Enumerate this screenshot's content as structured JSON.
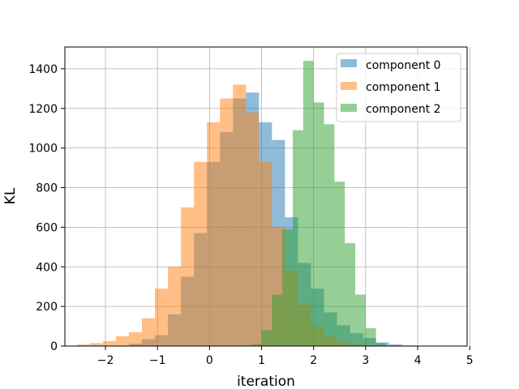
{
  "chart_data": {
    "type": "bar",
    "subtype": "histogram",
    "title": "",
    "xlabel": "iteration",
    "ylabel": "KL",
    "xlim": [
      -2.78,
      4.95
    ],
    "ylim": [
      0,
      1510
    ],
    "grid": true,
    "legend_position": "top-right",
    "x_ticks": [
      -2,
      -1,
      0,
      1,
      2,
      3,
      4,
      5
    ],
    "x_tick_labels": [
      "−2",
      "−1",
      "0",
      "1",
      "2",
      "3",
      "4",
      "5"
    ],
    "y_ticks": [
      0,
      200,
      400,
      600,
      800,
      1000,
      1200,
      1400
    ],
    "y_tick_labels": [
      "0",
      "200",
      "400",
      "600",
      "800",
      "1000",
      "1200",
      "1400"
    ],
    "opacity": 0.5,
    "series": [
      {
        "name": "component 0",
        "color": "#1f77b4",
        "bins": [
          [
            -1.55,
            -1.3,
            12
          ],
          [
            -1.3,
            -1.05,
            35
          ],
          [
            -1.05,
            -0.8,
            55
          ],
          [
            -0.8,
            -0.55,
            160
          ],
          [
            -0.55,
            -0.3,
            350
          ],
          [
            -0.3,
            -0.05,
            570
          ],
          [
            -0.05,
            0.2,
            930
          ],
          [
            0.2,
            0.45,
            1080
          ],
          [
            0.45,
            0.7,
            1250
          ],
          [
            0.7,
            0.95,
            1280
          ],
          [
            0.95,
            1.2,
            1130
          ],
          [
            1.2,
            1.45,
            1040
          ],
          [
            1.45,
            1.7,
            650
          ],
          [
            1.7,
            1.95,
            420
          ],
          [
            1.95,
            2.2,
            290
          ],
          [
            2.2,
            2.45,
            170
          ],
          [
            2.45,
            2.7,
            105
          ],
          [
            2.7,
            2.95,
            65
          ],
          [
            2.95,
            3.2,
            40
          ],
          [
            3.2,
            3.45,
            18
          ],
          [
            3.45,
            3.7,
            8
          ],
          [
            3.7,
            3.95,
            3
          ],
          [
            3.95,
            4.2,
            1
          ]
        ]
      },
      {
        "name": "component 1",
        "color": "#ff7f0e",
        "bins": [
          [
            -2.55,
            -2.3,
            8
          ],
          [
            -2.3,
            -2.05,
            15
          ],
          [
            -2.05,
            -1.8,
            25
          ],
          [
            -1.8,
            -1.55,
            50
          ],
          [
            -1.55,
            -1.3,
            70
          ],
          [
            -1.3,
            -1.05,
            140
          ],
          [
            -1.05,
            -0.8,
            290
          ],
          [
            -0.8,
            -0.55,
            400
          ],
          [
            -0.55,
            -0.3,
            700
          ],
          [
            -0.3,
            -0.05,
            930
          ],
          [
            -0.05,
            0.2,
            1130
          ],
          [
            0.2,
            0.45,
            1250
          ],
          [
            0.45,
            0.7,
            1320
          ],
          [
            0.7,
            0.95,
            1180
          ],
          [
            0.95,
            1.2,
            930
          ],
          [
            1.2,
            1.45,
            600
          ],
          [
            1.45,
            1.7,
            380
          ],
          [
            1.7,
            1.95,
            210
          ],
          [
            1.95,
            2.2,
            100
          ],
          [
            2.2,
            2.45,
            50
          ],
          [
            2.45,
            2.7,
            20
          ],
          [
            2.7,
            2.95,
            8
          ]
        ]
      },
      {
        "name": "component 2",
        "color": "#2ca02c",
        "bins": [
          [
            0.8,
            1.0,
            10
          ],
          [
            1.0,
            1.2,
            80
          ],
          [
            1.2,
            1.4,
            260
          ],
          [
            1.4,
            1.6,
            590
          ],
          [
            1.6,
            1.8,
            1090
          ],
          [
            1.8,
            2.0,
            1440
          ],
          [
            2.0,
            2.2,
            1230
          ],
          [
            2.2,
            2.4,
            1120
          ],
          [
            2.4,
            2.6,
            830
          ],
          [
            2.6,
            2.8,
            520
          ],
          [
            2.8,
            3.0,
            260
          ],
          [
            3.0,
            3.2,
            90
          ],
          [
            3.2,
            3.4,
            15
          ]
        ]
      }
    ]
  }
}
